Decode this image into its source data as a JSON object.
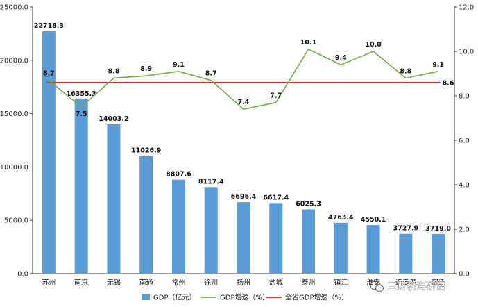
{
  "chart_data": {
    "type": "bar",
    "categories": [
      "苏州",
      "南京",
      "无锡",
      "南通",
      "常州",
      "徐州",
      "扬州",
      "盐城",
      "泰州",
      "镇江",
      "淮安",
      "连云港",
      "宿迁"
    ],
    "series": [
      {
        "name": "GDP（亿元）",
        "type": "bar",
        "axis": "left",
        "color": "#5b9bd5",
        "values": [
          22718.3,
          16355.3,
          14003.2,
          11026.9,
          8807.6,
          8117.4,
          6696.4,
          6617.4,
          6025.3,
          4763.4,
          4550.1,
          3727.9,
          3719.0
        ],
        "labels": [
          "22718.3",
          "16355.3",
          "14003.2",
          "11026.9",
          "8807.6",
          "8117.4",
          "6696.4",
          "6617.4",
          "6025.3",
          "4763.4",
          "4550.1",
          "3727.9",
          "3719.0"
        ]
      },
      {
        "name": "GDP增速（%）",
        "type": "line",
        "axis": "right",
        "color": "#70ad47",
        "values": [
          8.7,
          7.5,
          8.8,
          8.9,
          9.1,
          8.7,
          7.4,
          7.7,
          10.1,
          9.4,
          10.0,
          8.8,
          9.1
        ],
        "labels": [
          "8.7",
          "7.5",
          "8.8",
          "8.9",
          "9.1",
          "8.7",
          "7.4",
          "7.7",
          "10.1",
          "9.4",
          "10.0",
          "8.8",
          "9.1"
        ]
      },
      {
        "name": "全省GDP增速（%）",
        "type": "line",
        "axis": "right",
        "color": "#e8231c",
        "value": 8.6,
        "label": "8.6"
      }
    ],
    "left_axis": {
      "min": 0,
      "max": 25000,
      "ticks": [
        "0.0",
        "5000.0",
        "10000.0",
        "15000.0",
        "20000.0",
        "25000.0"
      ]
    },
    "right_axis": {
      "min": 0,
      "max": 12,
      "ticks": [
        "0.0",
        "2.0",
        "4.0",
        "6.0",
        "8.0",
        "10.0",
        "12.0"
      ]
    },
    "legend_position": "bottom",
    "grid": false
  },
  "watermark": {
    "text": "三财税海研语",
    "icon": "wechat-icon"
  }
}
